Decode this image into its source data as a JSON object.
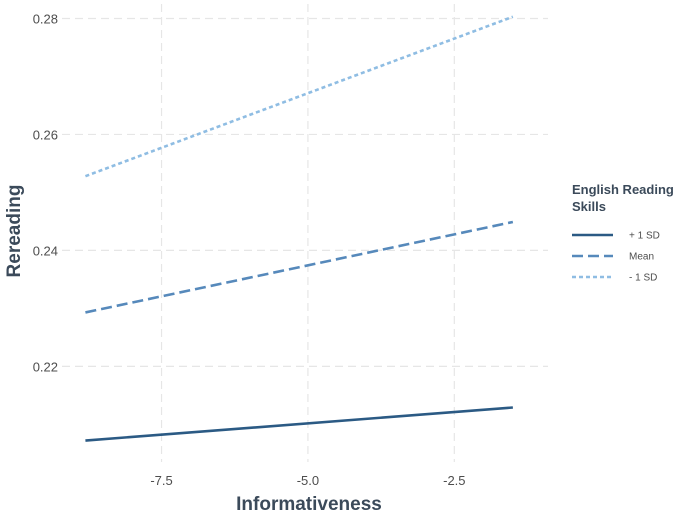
{
  "chart_data": {
    "type": "line",
    "xlabel": "Informativeness",
    "ylabel": "Rereading",
    "xlim": [
      -9.2,
      -0.9
    ],
    "ylim": [
      0.2035,
      0.2825
    ],
    "x_ticks": [
      -7.5,
      -5.0,
      -2.5
    ],
    "x_tick_labels": [
      "-7.5",
      "-5.0",
      "-2.5"
    ],
    "y_ticks": [
      0.22,
      0.24,
      0.26,
      0.28
    ],
    "y_tick_labels": [
      "0.22",
      "0.24",
      "0.26",
      "0.28"
    ],
    "grid": true,
    "legend": {
      "title_lines": [
        "English Reading",
        "Skills"
      ],
      "position": "right"
    },
    "series": [
      {
        "name": "+ 1 SD",
        "x": [
          -8.8,
          -1.5
        ],
        "values": [
          0.2072,
          0.2129
        ],
        "color": "#2b5a84",
        "dash": "solid"
      },
      {
        "name": "Mean",
        "x": [
          -8.8,
          -1.5
        ],
        "values": [
          0.2293,
          0.2449
        ],
        "color": "#5689bb",
        "dash": "dashed"
      },
      {
        "name": "- 1 SD",
        "x": [
          -8.8,
          -1.5
        ],
        "values": [
          0.2528,
          0.2803
        ],
        "color": "#8fbde3",
        "dash": "dotted"
      }
    ]
  }
}
